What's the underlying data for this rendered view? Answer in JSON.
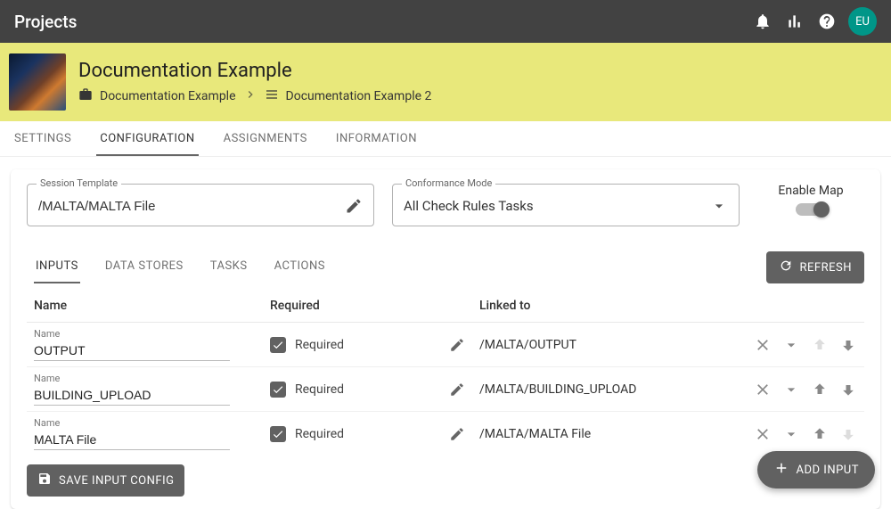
{
  "colors": {
    "topbar_bg": "#424242",
    "hero_bg": "#e8e87b",
    "primary_gray": "#616161",
    "avatar_bg": "#009688"
  },
  "topbar": {
    "title": "Projects",
    "avatar_initials": "EU"
  },
  "hero": {
    "title": "Documentation Example",
    "breadcrumb": {
      "item1": "Documentation Example",
      "item2": "Documentation Example 2"
    }
  },
  "tabs": {
    "settings": "SETTINGS",
    "configuration": "CONFIGURATION",
    "assignments": "ASSIGNMENTS",
    "information": "INFORMATION",
    "active": "configuration"
  },
  "config": {
    "session_template": {
      "label": "Session Template",
      "value": "/MALTA/MALTA File"
    },
    "conformance_mode": {
      "label": "Conformance Mode",
      "value": "All Check Rules Tasks"
    },
    "map": {
      "label": "Enable Map",
      "value": false
    }
  },
  "inner_tabs": {
    "inputs": "INPUTS",
    "data_stores": "DATA STORES",
    "tasks": "TASKS",
    "actions": "ACTIONS",
    "active": "inputs",
    "refresh": "REFRESH"
  },
  "table": {
    "columns": {
      "name": "Name",
      "required": "Required",
      "linked": "Linked to"
    },
    "row_name_label": "Name",
    "required_label": "Required",
    "rows": [
      {
        "name": "OUTPUT",
        "required": true,
        "linked_to": "/MALTA/OUTPUT",
        "up_enabled": false,
        "down_enabled": true
      },
      {
        "name": "BUILDING_UPLOAD",
        "required": true,
        "linked_to": "/MALTA/BUILDING_UPLOAD",
        "up_enabled": true,
        "down_enabled": true
      },
      {
        "name": "MALTA File",
        "required": true,
        "linked_to": "/MALTA/MALTA File",
        "up_enabled": true,
        "down_enabled": false
      }
    ]
  },
  "buttons": {
    "save_input_config": "SAVE INPUT CONFIG",
    "add_input": "ADD INPUT"
  }
}
